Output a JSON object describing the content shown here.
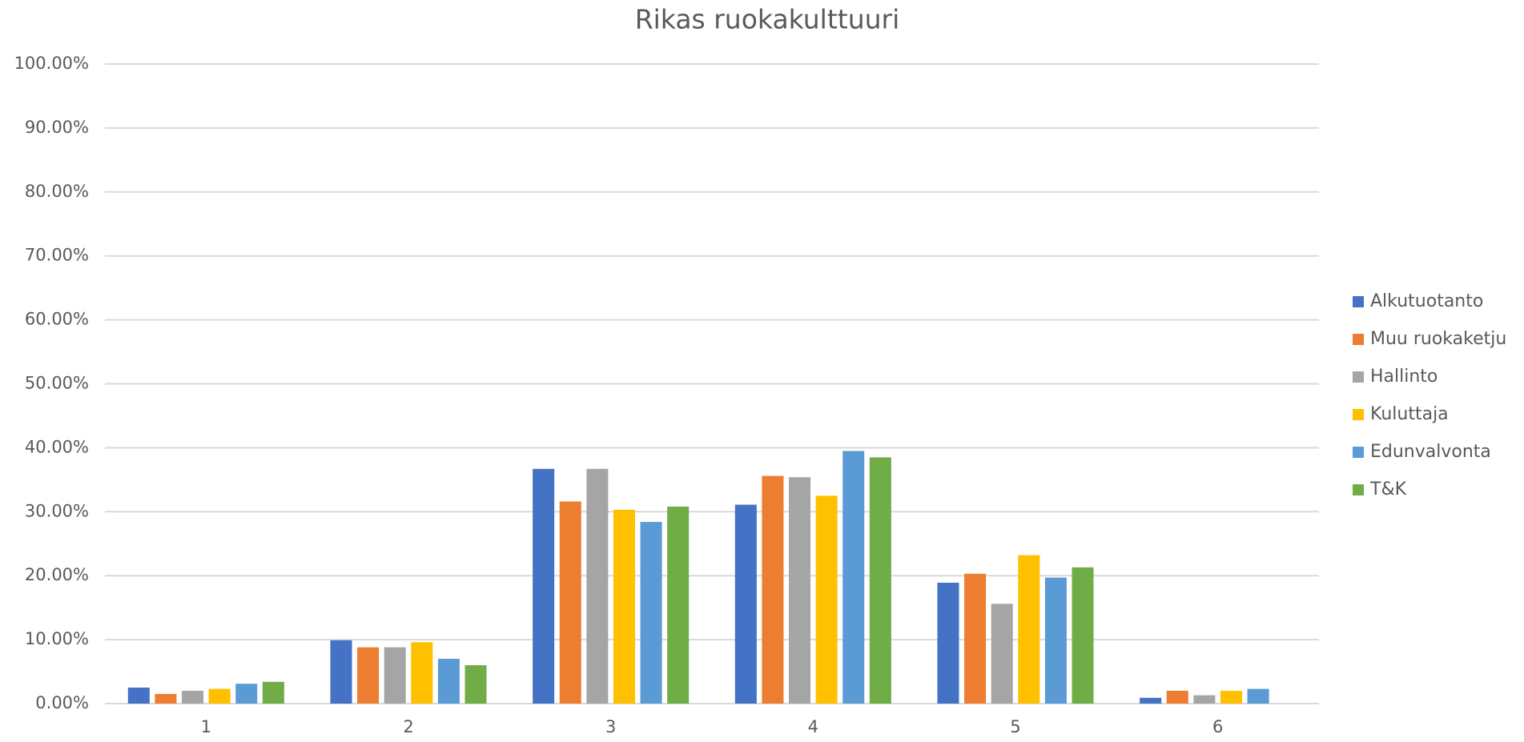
{
  "chart_data": {
    "type": "bar",
    "title": "Rikas ruokakulttuuri",
    "categories": [
      "1",
      "2",
      "3",
      "4",
      "5",
      "6"
    ],
    "series": [
      {
        "name": "Alkutuotanto",
        "color": "#4472c4",
        "values": [
          2.5,
          9.9,
          36.7,
          31.1,
          18.9,
          0.9
        ]
      },
      {
        "name": "Muu ruokaketju",
        "color": "#ed7d31",
        "values": [
          1.5,
          8.8,
          31.6,
          35.6,
          20.3,
          2.0
        ]
      },
      {
        "name": "Hallinto",
        "color": "#a5a5a5",
        "values": [
          2.0,
          8.8,
          36.7,
          35.4,
          15.6,
          1.3
        ]
      },
      {
        "name": "Kuluttaja",
        "color": "#ffc000",
        "values": [
          2.3,
          9.6,
          30.3,
          32.5,
          23.2,
          2.0
        ]
      },
      {
        "name": "Edunvalvonta",
        "color": "#5b9bd5",
        "values": [
          3.1,
          7.0,
          28.4,
          39.5,
          19.7,
          2.3
        ]
      },
      {
        "name": "T&K",
        "color": "#70ad47",
        "values": [
          3.4,
          6.0,
          30.8,
          38.5,
          21.3,
          0
        ]
      }
    ],
    "ylim": [
      0,
      100
    ],
    "yticks": [
      {
        "value": 0,
        "label": "0.00%"
      },
      {
        "value": 10,
        "label": "10.00%"
      },
      {
        "value": 20,
        "label": "20.00%"
      },
      {
        "value": 30,
        "label": "30.00%"
      },
      {
        "value": 40,
        "label": "40.00%"
      },
      {
        "value": 50,
        "label": "50.00%"
      },
      {
        "value": 60,
        "label": "60.00%"
      },
      {
        "value": 70,
        "label": "70.00%"
      },
      {
        "value": 80,
        "label": "80.00%"
      },
      {
        "value": 90,
        "label": "90.00%"
      },
      {
        "value": 100,
        "label": "100.00%"
      }
    ],
    "grid": true,
    "legend": "right"
  }
}
